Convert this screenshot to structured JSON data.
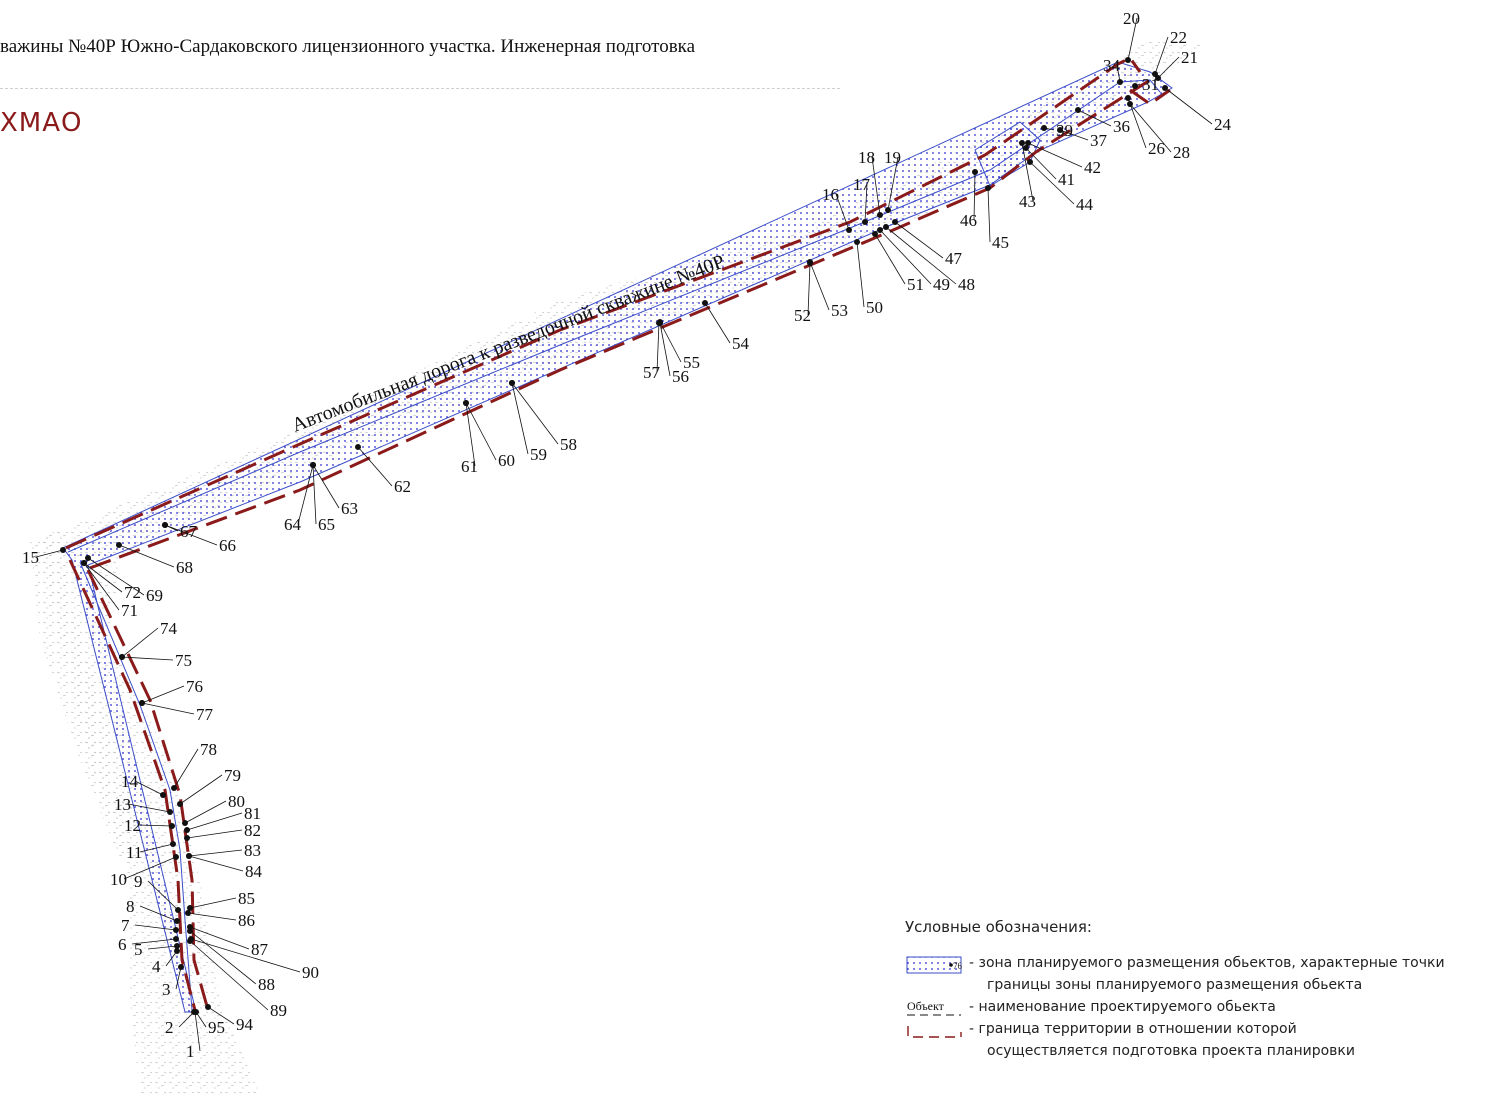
{
  "header": {
    "title": "важины №40Р Южно-Сардаковского лицензионного участка. Инженерная подготовка",
    "region": "ХМАО"
  },
  "map": {
    "road_name": "Автомобильная дорога к разведочной скважине №40Р",
    "colors": {
      "boundary_dash": "#8b1a1a",
      "axis_line": "#3b4ec9",
      "zone_dots": "#2a2ad0",
      "terrain": "#9a9a9a"
    },
    "point_labels": [
      "1",
      "2",
      "3",
      "4",
      "5",
      "6",
      "7",
      "8",
      "9",
      "10",
      "11",
      "12",
      "13",
      "14",
      "15",
      "16",
      "17",
      "18",
      "19",
      "20",
      "21",
      "22",
      "24",
      "26",
      "28",
      "31",
      "34",
      "36",
      "37",
      "39",
      "41",
      "42",
      "43",
      "44",
      "45",
      "46",
      "47",
      "48",
      "49",
      "50",
      "51",
      "52",
      "53",
      "54",
      "55",
      "56",
      "57",
      "58",
      "59",
      "60",
      "61",
      "62",
      "63",
      "64",
      "65",
      "66",
      "67",
      "68",
      "69",
      "71",
      "72",
      "74",
      "75",
      "76",
      "77",
      "78",
      "79",
      "80",
      "81",
      "82",
      "83",
      "84",
      "85",
      "86",
      "87",
      "88",
      "89",
      "90",
      "94",
      "95"
    ]
  },
  "legend": {
    "title": "Условные обозначения:",
    "swatch_label": "76",
    "object_word": "Объект",
    "items": [
      {
        "text": "- зона планируемого размещения обьектов, характерные точки"
      },
      {
        "text": "границы зоны планируемого размещения обьекта"
      },
      {
        "text": "- наименование проектируемого обьекта"
      },
      {
        "text": "- граница территории в отношении которой"
      },
      {
        "text": "осуществляется подготовка проекта планировки"
      }
    ]
  }
}
